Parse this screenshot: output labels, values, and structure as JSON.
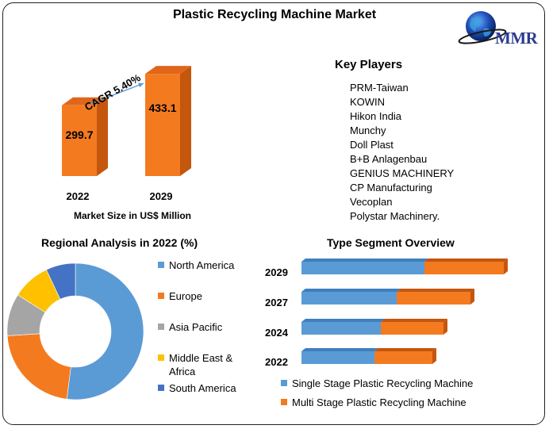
{
  "title": "Plastic Recycling Machine Market",
  "logo": {
    "text": "MMR",
    "icon": "globe-icon"
  },
  "colors": {
    "orange": "#F47A20",
    "orange_dark": "#C4560E",
    "blue": "#5B9BD5",
    "gray": "#A5A5A5",
    "yellow": "#FFC000",
    "navy": "#4472C4"
  },
  "key_players": {
    "title": "Key Players",
    "items": [
      "PRM-Taiwan",
      "KOWIN",
      "Hikon India",
      "Munchy",
      "Doll Plast",
      "B+B Anlagenbau",
      "GENIUS MACHINERY",
      "CP Manufacturing",
      "Vecoplan",
      "Polystar Machinery."
    ]
  },
  "chart_data": [
    {
      "type": "bar",
      "categories": [
        "2022",
        "2029"
      ],
      "values": [
        299.7,
        433.1
      ],
      "data_labels": [
        "299.7",
        "433.1"
      ],
      "xlabel": "Market Size in US$ Million",
      "annotation": "CAGR 5.40%"
    },
    {
      "type": "pie",
      "title": "Regional Analysis in 2022 (%)",
      "donut": true,
      "labels": [
        "North America",
        "Europe",
        "Asia Pacific",
        "Middle East & Africa",
        "South America"
      ],
      "values": [
        52,
        22,
        10,
        9,
        7
      ],
      "colors": [
        "#5B9BD5",
        "#F47A20",
        "#A5A5A5",
        "#FFC000",
        "#4472C4"
      ],
      "legend": "right"
    },
    {
      "type": "bar",
      "orientation": "horizontal",
      "stacked": true,
      "title": "Type Segment Overview",
      "categories": [
        "2029",
        "2027",
        "2024",
        "2022"
      ],
      "series": [
        {
          "name": "Single Stage Plastic Recycling Machine",
          "values": [
            155,
            120,
            100,
            92
          ],
          "color": "#5B9BD5"
        },
        {
          "name": "Multi Stage Plastic Recycling Machine",
          "values": [
            100,
            93,
            79,
            73
          ],
          "color": "#F47A20"
        }
      ],
      "legend": "bottom"
    }
  ]
}
